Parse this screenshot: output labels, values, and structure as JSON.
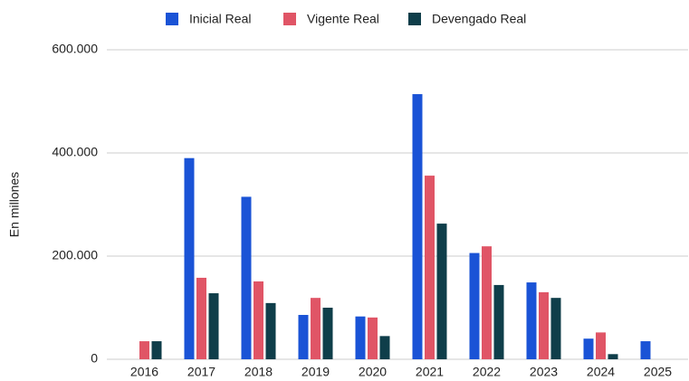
{
  "chart_data": {
    "type": "bar",
    "y_label": "En millones",
    "categories": [
      "2016",
      "2017",
      "2018",
      "2019",
      "2020",
      "2021",
      "2022",
      "2023",
      "2024",
      "2025"
    ],
    "series": [
      {
        "name": "Inicial Real",
        "color": "#1a53d6",
        "values": [
          null,
          390000,
          315000,
          86000,
          83000,
          514000,
          206000,
          149000,
          40000,
          35000
        ]
      },
      {
        "name": "Vigente Real",
        "color": "#e05566",
        "values": [
          35000,
          158000,
          151000,
          119000,
          81000,
          356000,
          219000,
          130000,
          52000,
          null
        ]
      },
      {
        "name": "Devengado Real",
        "color": "#0f3e4a",
        "values": [
          35000,
          128000,
          109000,
          100000,
          45000,
          263000,
          144000,
          119000,
          10000,
          null
        ]
      }
    ],
    "ylim": [
      0,
      600000
    ],
    "yticks": [
      0,
      {
        "value": 200000,
        "label": "200.000"
      },
      {
        "value": 400000,
        "label": "400.000"
      },
      {
        "value": 600000,
        "label": "600.000"
      }
    ],
    "grid": true,
    "legend": "top"
  }
}
